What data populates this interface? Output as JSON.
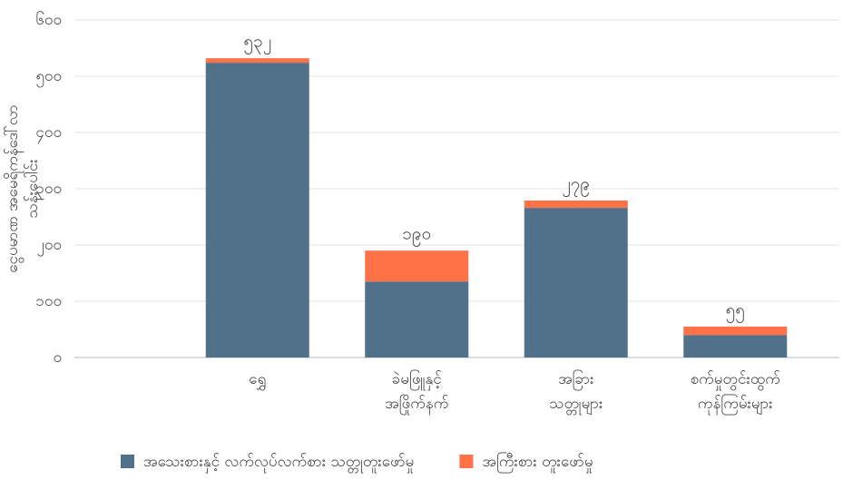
{
  "chart_data": {
    "type": "bar",
    "stacked": true,
    "ylabel": [
      "ငွေပမာဏ အမေရိကန်ဒေါ်လာ",
      "သန်းပေါင်း"
    ],
    "categories": [
      [
        "ရွှေ"
      ],
      [
        "ခဲမဖြူနှင့်",
        "အဖြိုက်နက်"
      ],
      [
        "အခြား",
        "သတ္တုများ"
      ],
      [
        "စက်မှုတွင်းထွက်",
        "ကုန်ကြမ်းများ"
      ]
    ],
    "series": [
      {
        "name": "အသေးစားနှင့် လက်လုပ်လက်စား သတ္တုတူးဖော်မှု",
        "color": "#51708a",
        "values": [
          524,
          135,
          266,
          40
        ]
      },
      {
        "name": "အကြီးစား တူးဖော်မှု",
        "color": "#ff7147",
        "values": [
          8,
          55,
          13,
          15
        ]
      }
    ],
    "totals": [
      532,
      190,
      279,
      55
    ],
    "total_labels": [
      "၅၃၂",
      "၁၉၀",
      "၂၇၉",
      "၅၅"
    ],
    "ylim": [
      0,
      600
    ],
    "yticks": [
      {
        "value": 0,
        "label": "၀"
      },
      {
        "value": 100,
        "label": "၁၀၀"
      },
      {
        "value": 200,
        "label": "၂၀၀"
      },
      {
        "value": 300,
        "label": "၃၀၀"
      },
      {
        "value": 400,
        "label": "၄၀၀"
      },
      {
        "value": 500,
        "label": "၅၀၀"
      },
      {
        "value": 600,
        "label": "၆၀၀"
      }
    ],
    "grid": true,
    "legend": "bottom"
  }
}
